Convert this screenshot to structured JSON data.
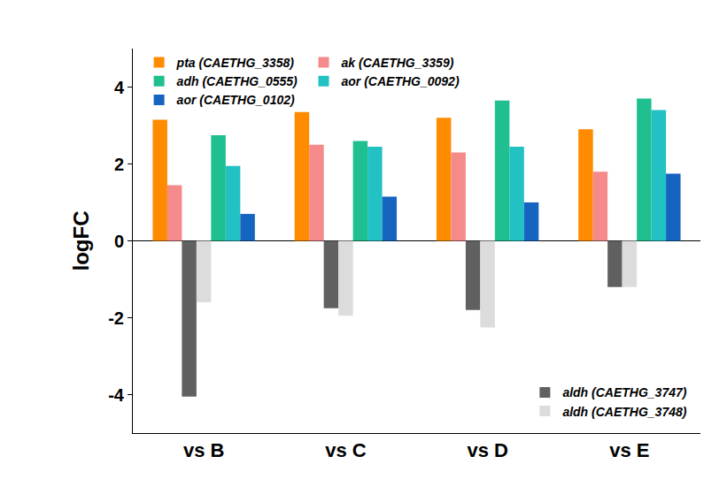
{
  "chart_data": {
    "type": "bar",
    "categories": [
      "vs B",
      "vs C",
      "vs D",
      "vs E"
    ],
    "y_label": "logFC",
    "ylim": [
      -5,
      5
    ],
    "yticks": [
      -4,
      -2,
      0,
      2,
      4
    ],
    "grid": false,
    "series": [
      {
        "name": "pta (CAETHG_3358)",
        "color": "#ff8c00",
        "values": [
          3.15,
          3.35,
          3.2,
          2.9
        ],
        "legend": "upper left"
      },
      {
        "name": "ak (CAETHG_3359)",
        "color": "#f48a8a",
        "values": [
          1.45,
          2.5,
          2.3,
          1.8
        ],
        "legend": "upper left"
      },
      {
        "name": "aldh (CAETHG_3747)",
        "color": "#606060",
        "values": [
          -4.05,
          -1.75,
          -1.8,
          -1.2
        ],
        "legend": "lower right"
      },
      {
        "name": "aldh (CAETHG_3748)",
        "color": "#dcdcdc",
        "values": [
          -1.6,
          -1.95,
          -2.25,
          -1.2
        ],
        "legend": "lower right"
      },
      {
        "name": "adh (CAETHG_0555)",
        "color": "#1fbf8f",
        "values": [
          2.75,
          2.6,
          3.65,
          3.7
        ],
        "legend": "upper left"
      },
      {
        "name": "aor (CAETHG_0092)",
        "color": "#22c1c3",
        "values": [
          1.95,
          2.45,
          2.45,
          3.4
        ],
        "legend": "upper left"
      },
      {
        "name": "aor (CAETHG_0102)",
        "color": "#1565c0",
        "values": [
          0.7,
          1.15,
          1.0,
          1.75
        ],
        "legend": "upper left"
      }
    ]
  }
}
